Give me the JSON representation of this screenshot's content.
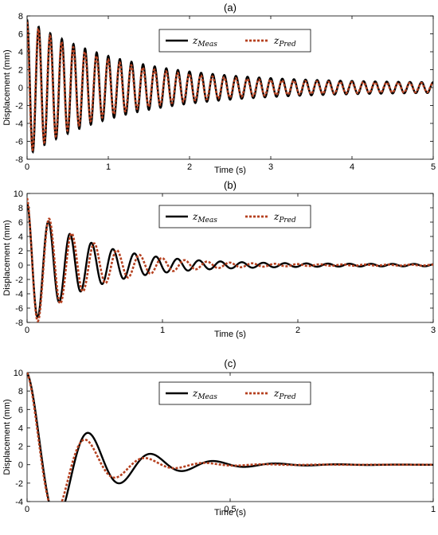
{
  "figure": {
    "legend_labels": {
      "measured": "z",
      "measured_sub": "Meas",
      "predicted": "z",
      "predicted_sub": "Pred"
    }
  },
  "colors": {
    "measured": "#000000",
    "predicted": "#b5401f"
  },
  "chart_data": [
    {
      "type": "line",
      "title": "(a)",
      "xlabel": "Time (s)",
      "ylabel": "Displacement (mm)",
      "xlim": [
        0,
        5
      ],
      "ylim": [
        -8,
        8
      ],
      "xticks": [
        0,
        1,
        2,
        3,
        4,
        5
      ],
      "yticks": [
        -8,
        -6,
        -4,
        -2,
        0,
        2,
        4,
        6,
        8
      ],
      "legend_position": "top-right",
      "grid": false,
      "series": [
        {
          "name": "z_Meas",
          "model": {
            "amplitude": 7.6,
            "envelope_decay": 0.85,
            "residual_amplitude": 0.5,
            "frequency_hz": 7.0,
            "phase": 0.0
          }
        },
        {
          "name": "z_Pred",
          "model": {
            "amplitude": 7.4,
            "envelope_decay": 0.95,
            "residual_amplitude": 0.45,
            "frequency_hz": 7.0,
            "phase": 0.15
          }
        }
      ]
    },
    {
      "type": "line",
      "title": "(b)",
      "xlabel": "Time (s)",
      "ylabel": "Displacement (mm)",
      "xlim": [
        0,
        3
      ],
      "ylim": [
        -8,
        10
      ],
      "xticks": [
        0,
        1,
        2,
        3
      ],
      "yticks": [
        -8,
        -6,
        -4,
        -2,
        0,
        2,
        4,
        6,
        8,
        10
      ],
      "legend_position": "top-right",
      "grid": false,
      "series": [
        {
          "name": "z_Meas",
          "model": {
            "amplitude": 8.6,
            "envelope_decay": 2.2,
            "residual_amplitude": 0.15,
            "frequency_hz": 6.3,
            "phase": 0.0
          }
        },
        {
          "name": "z_Pred",
          "model": {
            "amplitude": 9.4,
            "envelope_decay": 2.3,
            "residual_amplitude": 0.05,
            "frequency_hz": 6.0,
            "phase": 0.1
          }
        }
      ]
    },
    {
      "type": "line",
      "title": "(c)",
      "xlabel": "Time (s)",
      "ylabel": "Displacement (mm)",
      "xlim": [
        0,
        1
      ],
      "ylim": [
        -4,
        10
      ],
      "xticks": [
        0,
        0.5,
        1
      ],
      "yticks": [
        -4,
        -2,
        0,
        2,
        4,
        6,
        8,
        10
      ],
      "legend_position": "top-right",
      "grid": false,
      "series": [
        {
          "name": "z_Meas",
          "model": {
            "amplitude": 10.0,
            "envelope_decay": 7.0,
            "residual_amplitude": 0.0,
            "frequency_hz": 6.5,
            "phase": 0.0
          }
        },
        {
          "name": "z_Pred",
          "model": {
            "amplitude": 10.0,
            "envelope_decay": 9.0,
            "residual_amplitude": 0.0,
            "frequency_hz": 6.8,
            "phase": 0.0
          }
        }
      ]
    }
  ]
}
